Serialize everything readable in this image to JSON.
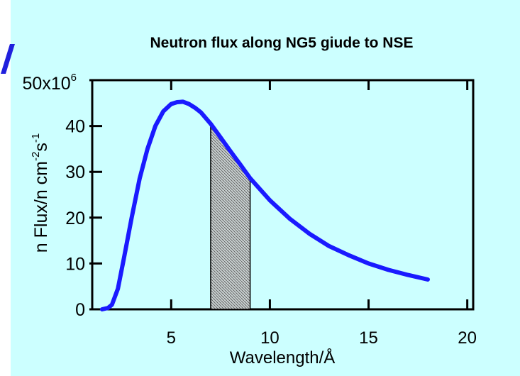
{
  "colors": {
    "background": "#ccffff",
    "curve": "#1a1aff",
    "axes": "#000000",
    "corner_mark": "#2020dd",
    "shaded_fill": "#c8d0d0"
  },
  "chart_data": {
    "type": "line",
    "title": "Neutron flux along NG5 giude to NSE",
    "xlabel": "Wavelength/Å",
    "ylabel": {
      "base": "n Flux/n cm",
      "sup1": "-2",
      "mid": "s",
      "sup2": "-1"
    },
    "y_multiplier": {
      "base": "50x10",
      "exponent": "6"
    },
    "xlim": [
      1,
      20.3
    ],
    "ylim": [
      0,
      50000000
    ],
    "x_ticks": [
      5,
      10,
      15,
      20
    ],
    "x_tick_labels": [
      "5",
      "10",
      "15",
      "20"
    ],
    "y_ticks": [
      0,
      10000000,
      20000000,
      30000000,
      40000000
    ],
    "y_tick_labels": [
      "0",
      "10",
      "20",
      "30",
      "40"
    ],
    "grid": false,
    "series": [
      {
        "x": [
          1.5,
          1.8,
          2.0,
          2.3,
          2.6,
          3.0,
          3.4,
          3.8,
          4.2,
          4.6,
          5.0,
          5.3,
          5.6,
          5.9,
          6.2,
          6.5,
          7.0,
          7.5,
          8.0,
          8.5,
          9.0,
          10.0,
          11.0,
          12.0,
          13.0,
          14.0,
          15.0,
          16.0,
          17.0,
          18.0
        ],
        "y": [
          0,
          300000,
          1000000,
          4500000,
          11000000,
          20000000,
          28500000,
          35000000,
          40000000,
          43200000,
          44800000,
          45200000,
          45300000,
          44800000,
          44000000,
          43000000,
          40500000,
          37500000,
          34500000,
          31600000,
          28600000,
          23800000,
          19800000,
          16500000,
          13800000,
          11800000,
          10000000,
          8600000,
          7500000,
          6500000
        ]
      }
    ],
    "shaded_band": {
      "x_range": [
        7.0,
        9.0
      ],
      "top_y": [
        40500000,
        28600000
      ]
    }
  }
}
